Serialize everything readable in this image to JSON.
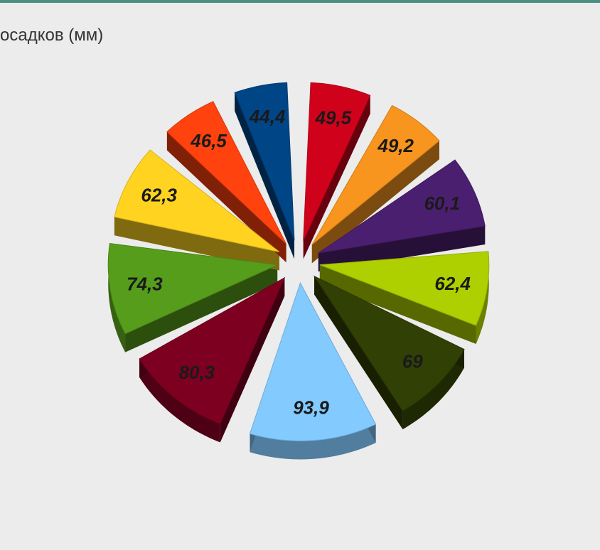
{
  "chart_data": {
    "type": "pie",
    "title": "осадков (мм)",
    "unit": "мм",
    "three_d": true,
    "exploded": true,
    "values": [
      49.5,
      49.2,
      60.1,
      62.4,
      69,
      93.9,
      80.3,
      74.3,
      62.3,
      46.5,
      44.4
    ],
    "labels": [
      "49,5",
      "49,2",
      "60,1",
      "62,4",
      "69",
      "93,9",
      "80,3",
      "74,3",
      "62,3",
      "46,5",
      "44,4"
    ],
    "colors": [
      "#d0021b",
      "#f7951e",
      "#4b1f6f",
      "#aecf00",
      "#314004",
      "#83caff",
      "#7e0021",
      "#579d1c",
      "#ffd320",
      "#ff420e",
      "#004586"
    ],
    "label_colors": [
      "#1a1a1a",
      "#1a1a1a",
      "#1a1a1a",
      "#1a1a1a",
      "#1a1a1a",
      "#1a1a1a",
      "#1a1a1a",
      "#1a1a1a",
      "#1a1a1a",
      "#1a1a1a",
      "#1a1a1a"
    ]
  }
}
